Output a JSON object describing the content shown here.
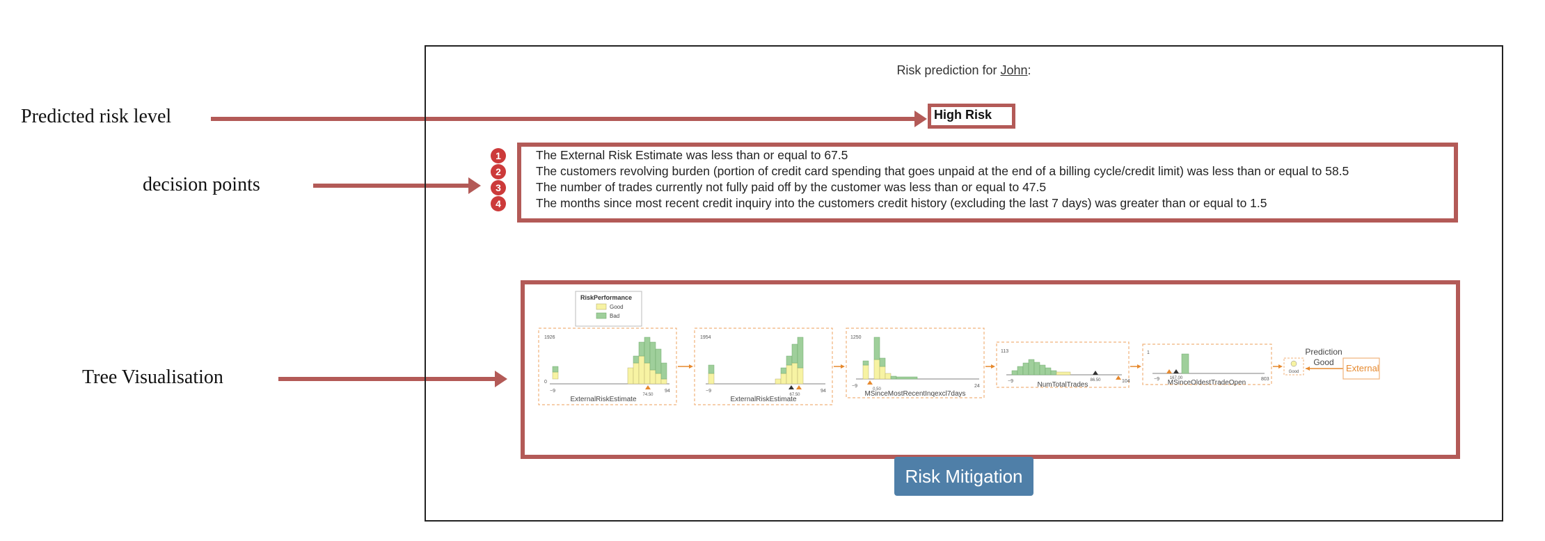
{
  "annotations": {
    "risk_level": "Predicted risk level",
    "decision_points": "decision points",
    "tree_vis": "Tree Visualisation"
  },
  "header": {
    "prefix": "Risk prediction for ",
    "name": "John",
    "suffix": ":"
  },
  "prediction": {
    "label": "High Risk"
  },
  "decision_points": [
    {
      "n": "1",
      "text": "The External Risk Estimate was less than or equal to 67.5"
    },
    {
      "n": "2",
      "text": "The customers revolving burden (portion of credit card spending that goes unpaid at the end of a billing cycle/credit limit) was less than or equal to 58.5"
    },
    {
      "n": "3",
      "text": "The number of trades currently not fully paid off by the customer was less than or equal to 47.5"
    },
    {
      "n": "4",
      "text": "The months since most recent credit inquiry into the customers credit history (excluding the last 7 days) was greater than or equal to 1.5"
    }
  ],
  "tree": {
    "legend": {
      "title": "RiskPerformance",
      "items": [
        "Good",
        "Bad"
      ]
    },
    "nodes": [
      {
        "feature": "ExternalRiskEstimate",
        "ymax": "1926",
        "ymin": "0",
        "xmin": "−9",
        "xmax": "94",
        "split": "74.50"
      },
      {
        "feature": "ExternalRiskEstimate",
        "ymax": "1954",
        "ymin": "0",
        "xmin": "−9",
        "xmax": "94",
        "split": "67.50"
      },
      {
        "feature": "MSinceMostRecentInqexcl7days",
        "ymax": "1250",
        "ymin": "0",
        "xmin": "−9",
        "xmax": "24",
        "split": "0.50"
      },
      {
        "feature": "NumTotalTrades",
        "ymax": "113",
        "ymin": "0",
        "xmin": "−9",
        "xmax": "104",
        "split": "86.50"
      },
      {
        "feature": "MSinceOldestTradeOpen",
        "ymax": "1",
        "ymin": "0",
        "xmin": "−9",
        "xmax": "803",
        "split": "167.00"
      }
    ],
    "leaf_label": "Good",
    "prediction_title": "Prediction",
    "prediction_value": "Good",
    "external_label": "External"
  },
  "button": {
    "label": "Risk Mitigation"
  },
  "colors": {
    "accent": "#b35a57",
    "button": "#4f7fa8",
    "good": "#f7f3a3",
    "bad": "#9fcf9b",
    "arrow": "#e6892e"
  }
}
